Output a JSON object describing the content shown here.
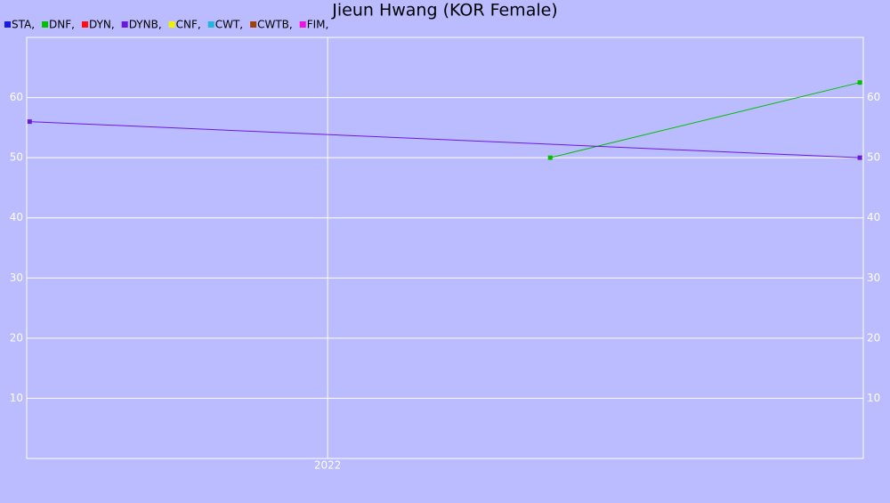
{
  "chart_data": {
    "type": "line",
    "title": "Jieun Hwang (KOR Female)",
    "xlim": [
      2021.478,
      2022.929
    ],
    "xticks": [
      2022
    ],
    "ylim": [
      0,
      70
    ],
    "yticks": [
      10,
      20,
      30,
      40,
      50,
      60
    ],
    "grid": true,
    "legend": "top-left",
    "series": [
      {
        "name": "STA,",
        "color": "#1a1ae6",
        "x": [],
        "values": []
      },
      {
        "name": "DNF,",
        "color": "#00c000",
        "x": [
          2022.386,
          2022.923
        ],
        "values": [
          50,
          62.5
        ]
      },
      {
        "name": "DYN,",
        "color": "#ff1010",
        "x": [],
        "values": []
      },
      {
        "name": "DYNB,",
        "color": "#6a1ae0",
        "x": [
          2021.483,
          2022.923
        ],
        "values": [
          56,
          50
        ]
      },
      {
        "name": "CNF,",
        "color": "#f0f000",
        "x": [],
        "values": []
      },
      {
        "name": "CWT,",
        "color": "#20b4e0",
        "x": [],
        "values": []
      },
      {
        "name": "CWTB,",
        "color": "#a0400a",
        "x": [],
        "values": []
      },
      {
        "name": "FIM,",
        "color": "#f010e0",
        "x": [],
        "values": []
      }
    ]
  }
}
